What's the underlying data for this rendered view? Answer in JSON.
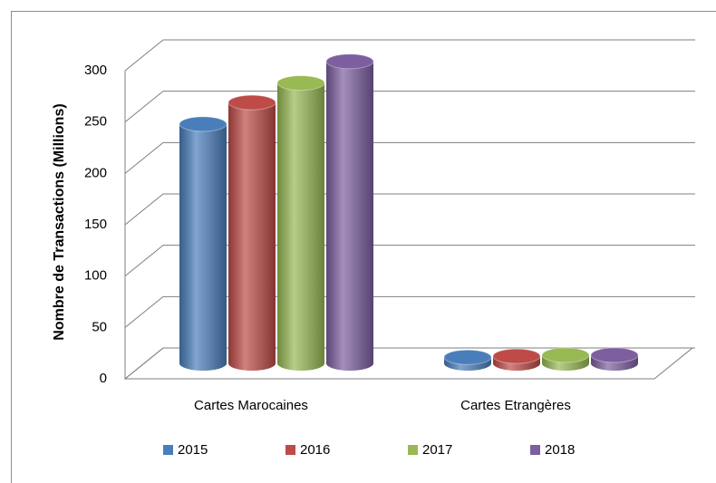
{
  "chart_data": {
    "type": "bar3d",
    "y_label": "Nombre de Transactions (Millions)",
    "categories": [
      "Cartes Marocaines",
      "Cartes Etrangères"
    ],
    "series": [
      {
        "name": "2015",
        "color": "#4a7ebb",
        "values": [
          233,
          6
        ]
      },
      {
        "name": "2016",
        "color": "#be4b48",
        "values": [
          254,
          7
        ]
      },
      {
        "name": "2017",
        "color": "#98b954",
        "values": [
          273,
          8
        ]
      },
      {
        "name": "2018",
        "color": "#7d5fa0",
        "values": [
          294,
          8
        ]
      }
    ],
    "ylim": [
      0,
      300
    ],
    "yticks": [
      0,
      50,
      100,
      150,
      200,
      250,
      300
    ],
    "grid": true,
    "legend": "bottom"
  }
}
